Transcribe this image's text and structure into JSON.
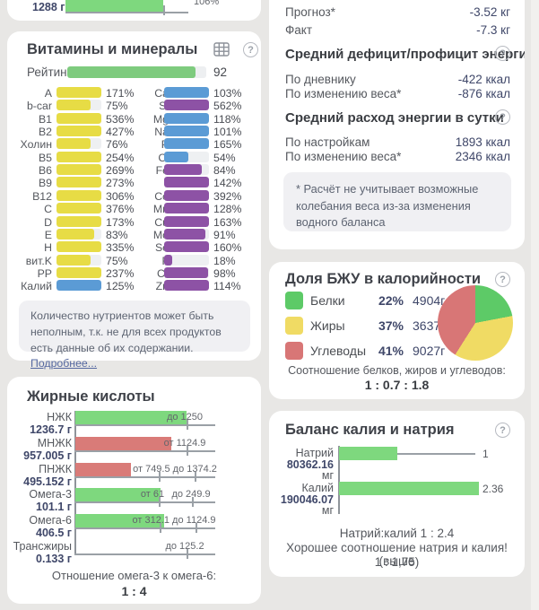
{
  "top_left": {
    "value_label": "1288 г",
    "percent": "106%"
  },
  "vitamins": {
    "title": "Витамины и минералы",
    "rating_label": "Рейтинг",
    "rating_value": "92",
    "rating_fill": "92%",
    "note": "Количество нутриентов может быть неполным, т.к. не для всех продуктов есть данные об их содержании. ",
    "note_link": "Подробнее...",
    "left": [
      {
        "label": "A",
        "value": "171%",
        "fill": "100%",
        "color": "yellow"
      },
      {
        "label": "b-car",
        "value": "75%",
        "fill": "75%",
        "color": "yellow"
      },
      {
        "label": "B1",
        "value": "536%",
        "fill": "100%",
        "color": "yellow"
      },
      {
        "label": "B2",
        "value": "427%",
        "fill": "100%",
        "color": "yellow"
      },
      {
        "label": "Холин",
        "value": "76%",
        "fill": "76%",
        "color": "yellow"
      },
      {
        "label": "B5",
        "value": "254%",
        "fill": "100%",
        "color": "yellow"
      },
      {
        "label": "B6",
        "value": "269%",
        "fill": "100%",
        "color": "yellow"
      },
      {
        "label": "B9",
        "value": "273%",
        "fill": "100%",
        "color": "yellow"
      },
      {
        "label": "B12",
        "value": "306%",
        "fill": "100%",
        "color": "yellow"
      },
      {
        "label": "C",
        "value": "376%",
        "fill": "100%",
        "color": "yellow"
      },
      {
        "label": "D",
        "value": "173%",
        "fill": "100%",
        "color": "yellow"
      },
      {
        "label": "E",
        "value": "83%",
        "fill": "83%",
        "color": "yellow"
      },
      {
        "label": "H",
        "value": "335%",
        "fill": "100%",
        "color": "yellow"
      },
      {
        "label": "вит.K",
        "value": "75%",
        "fill": "75%",
        "color": "yellow"
      },
      {
        "label": "PP",
        "value": "237%",
        "fill": "100%",
        "color": "yellow"
      },
      {
        "label": "Калий",
        "value": "125%",
        "fill": "100%",
        "color": "blue"
      }
    ],
    "right": [
      {
        "label": "Ca",
        "value": "103%",
        "fill": "100%",
        "color": "blue"
      },
      {
        "label": "Si",
        "value": "562%",
        "fill": "100%",
        "color": "purple"
      },
      {
        "label": "Mg",
        "value": "118%",
        "fill": "100%",
        "color": "blue"
      },
      {
        "label": "Na",
        "value": "101%",
        "fill": "100%",
        "color": "blue"
      },
      {
        "label": "P",
        "value": "165%",
        "fill": "100%",
        "color": "blue"
      },
      {
        "label": "Cl",
        "value": "54%",
        "fill": "54%",
        "color": "blue"
      },
      {
        "label": "Fe",
        "value": "84%",
        "fill": "84%",
        "color": "purple"
      },
      {
        "label": "I",
        "value": "142%",
        "fill": "100%",
        "color": "purple"
      },
      {
        "label": "Co",
        "value": "392%",
        "fill": "100%",
        "color": "purple"
      },
      {
        "label": "Mn",
        "value": "128%",
        "fill": "100%",
        "color": "purple"
      },
      {
        "label": "Cu",
        "value": "163%",
        "fill": "100%",
        "color": "purple"
      },
      {
        "label": "Mo",
        "value": "91%",
        "fill": "91%",
        "color": "purple"
      },
      {
        "label": "Se",
        "value": "160%",
        "fill": "100%",
        "color": "purple"
      },
      {
        "label": "F",
        "value": "18%",
        "fill": "18%",
        "color": "purple"
      },
      {
        "label": "Cr",
        "value": "98%",
        "fill": "98%",
        "color": "purple"
      },
      {
        "label": "Zn",
        "value": "114%",
        "fill": "100%",
        "color": "purple"
      }
    ]
  },
  "fatty_acids": {
    "title": "Жирные кислоты",
    "rows": [
      {
        "label": "НЖК",
        "value": "1236.7 г",
        "color": "green",
        "bar": "124px",
        "ann1": "до 1250"
      },
      {
        "label": "МНЖК",
        "value": "957.005 г",
        "color": "red",
        "bar": "107px",
        "ann1": "от 1124.9"
      },
      {
        "label": "ПНЖК",
        "value": "495.152 г",
        "color": "red",
        "bar": "62px",
        "ann1": "от 749.5 до 1374.2"
      },
      {
        "label": "Омега-3",
        "value": "101.1 г",
        "color": "green",
        "bar": "95px",
        "ann1": "от 61",
        "ann2": "до 249.9"
      },
      {
        "label": "Омега-6",
        "value": "406.5 г",
        "color": "green",
        "bar": "99px",
        "ann1": "от 312.1 до 1124.9"
      },
      {
        "label": "Трансжиры",
        "value": "0.133 г",
        "color": "green",
        "bar": "0px",
        "ann1": "до 125.2"
      }
    ],
    "footer1": "Отношение омега-3 к омега-6:",
    "footer2": "1 : 4"
  },
  "energy": {
    "rows": [
      {
        "label": "Прогноз*",
        "value": "-3.52 кг"
      },
      {
        "label": "Факт",
        "value": "-7.3 кг"
      },
      {
        "label": "По дневнику",
        "value": "-422 ккал"
      },
      {
        "label": "По изменению веса*",
        "value": "-876 ккал"
      },
      {
        "label": "По настройкам",
        "value": "1893 ккал"
      },
      {
        "label": "По изменению веса*",
        "value": "2346 ккал"
      }
    ],
    "header1": "Средний дефицит/профицит энергии",
    "header2": "Средний расход энергии в сутки",
    "note": "* Расчёт не учитывает возможные колебания веса из-за изменения водного баланса"
  },
  "bju": {
    "title": "Доля БЖУ в калорийности",
    "legend": [
      {
        "label": "Белки",
        "pct": "22%",
        "grams": "4904г",
        "color": "green"
      },
      {
        "label": "Жиры",
        "pct": "37%",
        "grams": "3637г",
        "color": "yellow"
      },
      {
        "label": "Углеводы",
        "pct": "41%",
        "grams": "9027г",
        "color": "red"
      }
    ],
    "pie": [
      {
        "value": 22,
        "color": "#5dca67"
      },
      {
        "value": 37,
        "color": "#f0db64"
      },
      {
        "value": 41,
        "color": "#d87676"
      }
    ],
    "footer1": "Соотношение белков, жиров и углеводов:",
    "footer2": "1 : 0.7 : 1.8"
  },
  "balance": {
    "title": "Баланс калия и натрия",
    "rows": [
      {
        "label": "Натрий",
        "value": "80362.16",
        "unit": "мг",
        "bar": "65px",
        "mark": "1"
      },
      {
        "label": "Калий",
        "value": "190046.07",
        "unit": "мг",
        "bar": "156px",
        "mark": "2.36"
      }
    ],
    "footer1": "Натрий:калий 1 : 2.4",
    "footer2": "Хорошее соотношение натрия и калия! (выше",
    "footer3": "1 : 1,75)"
  }
}
